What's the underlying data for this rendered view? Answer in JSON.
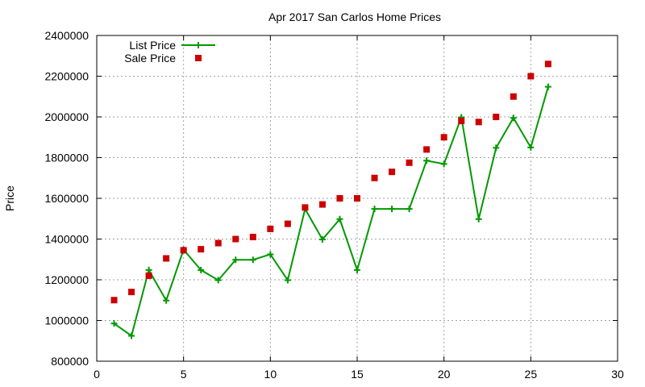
{
  "chart_data": {
    "type": "line",
    "title": "Apr 2017 San Carlos Home Prices",
    "xlabel": "",
    "ylabel": "Price",
    "xlim": [
      0,
      30
    ],
    "ylim": [
      800000,
      2400000
    ],
    "xticks": [
      0,
      5,
      10,
      15,
      20,
      25,
      30
    ],
    "yticks": [
      800000,
      1000000,
      1200000,
      1400000,
      1600000,
      1800000,
      2000000,
      2200000,
      2400000
    ],
    "xtick_labels": [
      "0",
      "5",
      "10",
      "15",
      "20",
      "25",
      "30"
    ],
    "ytick_labels": [
      "800000",
      "1000000",
      "1200000",
      "1400000",
      "1600000",
      "1800000",
      "2000000",
      "2200000",
      "2400000"
    ],
    "grid": true,
    "legend_position": "top-left",
    "x": [
      1,
      2,
      3,
      4,
      5,
      6,
      7,
      8,
      9,
      10,
      11,
      12,
      13,
      14,
      15,
      16,
      17,
      18,
      19,
      20,
      21,
      22,
      23,
      24,
      25,
      26
    ],
    "series": [
      {
        "name": "List Price",
        "style": "lines-points",
        "marker": "plus",
        "color": "#009900",
        "values": [
          985000,
          925000,
          1248000,
          1098000,
          1348000,
          1248000,
          1198000,
          1298000,
          1298000,
          1325000,
          1198000,
          1548000,
          1398000,
          1498000,
          1248000,
          1548000,
          1548000,
          1548000,
          1785000,
          1769000,
          1998000,
          1498000,
          1848000,
          1995000,
          1850000,
          2148000
        ]
      },
      {
        "name": "Sale Price",
        "style": "points",
        "marker": "square",
        "color": "#cc0000",
        "values": [
          1100000,
          1140000,
          1220000,
          1305000,
          1345000,
          1350000,
          1380000,
          1400000,
          1410000,
          1450000,
          1475000,
          1555000,
          1570000,
          1600000,
          1600000,
          1700000,
          1730000,
          1775000,
          1840000,
          1900000,
          1980000,
          1975000,
          2000000,
          2100000,
          2200000,
          2260000
        ]
      }
    ]
  }
}
